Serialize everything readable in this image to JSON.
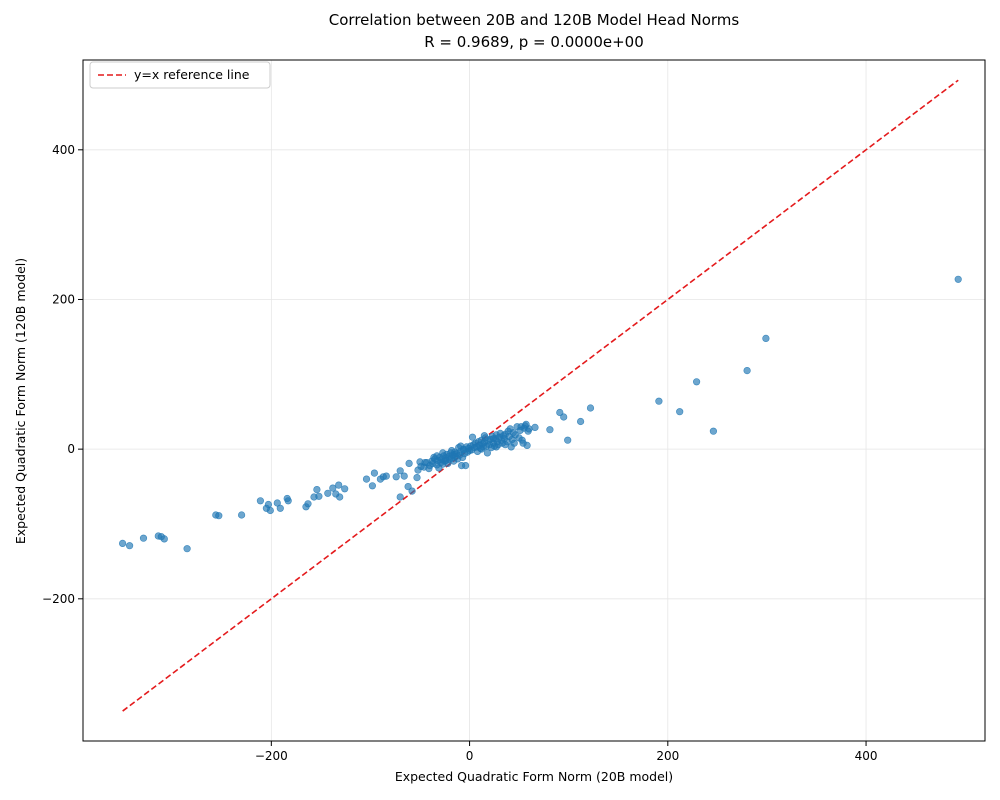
{
  "chart_data": {
    "type": "scatter",
    "title": "Correlation between 20B and 120B Model Head Norms",
    "subtitle": "R = 0.9689, p = 0.0000e+00",
    "xlabel": "Expected Quadratic Form Norm (20B model)",
    "ylabel": "Expected Quadratic Form Norm (120B model)",
    "xlim": [
      -390,
      520
    ],
    "ylim": [
      -390,
      520
    ],
    "xticks": [
      -200,
      0,
      200,
      400
    ],
    "yticks": [
      -200,
      0,
      200,
      400
    ],
    "xtick_labels": [
      "−200",
      "0",
      "200",
      "400"
    ],
    "ytick_labels": [
      "−200",
      "0",
      "200",
      "400"
    ],
    "grid": true,
    "legend_position": "upper-left",
    "series": [
      {
        "color": "#1f77b4",
        "points": [
          [
            493,
            227
          ],
          [
            299,
            148
          ],
          [
            280,
            105
          ],
          [
            229,
            90
          ],
          [
            191,
            64
          ],
          [
            212,
            50
          ],
          [
            246,
            24
          ],
          [
            122,
            55
          ],
          [
            112,
            37
          ],
          [
            99,
            12
          ],
          [
            91,
            49
          ],
          [
            95,
            43
          ],
          [
            81,
            26
          ],
          [
            -350,
            -126
          ],
          [
            -343,
            -129
          ],
          [
            -329,
            -119
          ],
          [
            -314,
            -116
          ],
          [
            -311,
            -117
          ],
          [
            -308,
            -120
          ],
          [
            -285,
            -133
          ],
          [
            -256,
            -88
          ],
          [
            -253,
            -89
          ],
          [
            -230,
            -88
          ],
          [
            -211,
            -69
          ],
          [
            -203,
            -74
          ],
          [
            -201,
            -82
          ],
          [
            -205,
            -79
          ],
          [
            -194,
            -72
          ],
          [
            -191,
            -79
          ],
          [
            -184,
            -66
          ],
          [
            -183,
            -69
          ],
          [
            -165,
            -77
          ],
          [
            -163,
            -73
          ],
          [
            -157,
            -64
          ],
          [
            -154,
            -54
          ],
          [
            -152,
            -63
          ],
          [
            -143,
            -59
          ],
          [
            -138,
            -52
          ],
          [
            -135,
            -60
          ],
          [
            -132,
            -48
          ],
          [
            -131,
            -64
          ],
          [
            -126,
            -53
          ],
          [
            -104,
            -40
          ],
          [
            -98,
            -49
          ],
          [
            -96,
            -32
          ],
          [
            -90,
            -40
          ],
          [
            -87,
            -37
          ],
          [
            -84,
            -36
          ],
          [
            -74,
            -37
          ],
          [
            -70,
            -64
          ],
          [
            -70,
            -29
          ],
          [
            -66,
            -36
          ],
          [
            -62,
            -50
          ],
          [
            -61,
            -19
          ],
          [
            -58,
            -56
          ],
          [
            -53,
            -38
          ],
          [
            -52,
            -28
          ],
          [
            -50,
            -17
          ],
          [
            -49,
            -23
          ],
          [
            -46,
            -24
          ],
          [
            -43,
            -18
          ],
          [
            -41,
            -26
          ],
          [
            -40,
            -22
          ],
          [
            -38,
            -16
          ],
          [
            -37,
            -19
          ],
          [
            -35,
            -13
          ],
          [
            -33,
            -21
          ],
          [
            -32,
            -15
          ],
          [
            -31,
            -25
          ],
          [
            -30,
            -11
          ],
          [
            -29,
            -18
          ],
          [
            -28,
            -14
          ],
          [
            -27,
            -20
          ],
          [
            -26,
            -9
          ],
          [
            -25,
            -16
          ],
          [
            -24,
            -12
          ],
          [
            -23,
            -7
          ],
          [
            -22,
            -19
          ],
          [
            -21,
            -10
          ],
          [
            -20,
            -14
          ],
          [
            -19,
            -5
          ],
          [
            -18,
            -12
          ],
          [
            -17,
            -8
          ],
          [
            -16,
            -16
          ],
          [
            -15,
            -4
          ],
          [
            -14,
            -10
          ],
          [
            -13,
            -6
          ],
          [
            -12,
            -13
          ],
          [
            -11,
            2
          ],
          [
            -10,
            -8
          ],
          [
            -9,
            -3
          ],
          [
            -8,
            -22
          ],
          [
            -7,
            -11
          ],
          [
            -6,
            -1
          ],
          [
            -5,
            -6
          ],
          [
            -4,
            -22
          ],
          [
            -3,
            3
          ],
          [
            -2,
            -4
          ],
          [
            -1,
            1
          ],
          [
            0,
            -2
          ],
          [
            1,
            4
          ],
          [
            2,
            -1
          ],
          [
            3,
            16
          ],
          [
            4,
            6
          ],
          [
            5,
            2
          ],
          [
            6,
            8
          ],
          [
            7,
            3
          ],
          [
            8,
            -3
          ],
          [
            9,
            10
          ],
          [
            10,
            5
          ],
          [
            11,
            1
          ],
          [
            12,
            12
          ],
          [
            13,
            7
          ],
          [
            14,
            3
          ],
          [
            15,
            9
          ],
          [
            16,
            15
          ],
          [
            17,
            4
          ],
          [
            18,
            -5
          ],
          [
            19,
            11
          ],
          [
            20,
            6
          ],
          [
            21,
            13
          ],
          [
            22,
            2
          ],
          [
            23,
            17
          ],
          [
            24,
            8
          ],
          [
            25,
            4
          ],
          [
            26,
            14
          ],
          [
            27,
            19
          ],
          [
            28,
            10
          ],
          [
            29,
            6
          ],
          [
            30,
            16
          ],
          [
            31,
            21
          ],
          [
            32,
            12
          ],
          [
            33,
            8
          ],
          [
            34,
            18
          ],
          [
            35,
            14
          ],
          [
            36,
            20
          ],
          [
            38,
            10
          ],
          [
            39,
            24
          ],
          [
            40,
            17
          ],
          [
            41,
            27
          ],
          [
            42,
            3
          ],
          [
            43,
            13
          ],
          [
            44,
            22
          ],
          [
            45,
            8
          ],
          [
            46,
            19
          ],
          [
            48,
            30
          ],
          [
            50,
            15
          ],
          [
            51,
            25
          ],
          [
            52,
            30
          ],
          [
            53,
            12
          ],
          [
            54,
            8
          ],
          [
            55,
            28
          ],
          [
            56,
            31
          ],
          [
            57,
            33
          ],
          [
            58,
            5
          ],
          [
            59,
            24
          ],
          [
            60,
            27
          ],
          [
            66,
            29
          ],
          [
            -45,
            -18
          ],
          [
            -36,
            -11
          ],
          [
            -27,
            -5
          ],
          [
            -18,
            -2
          ],
          [
            -9,
            4
          ],
          [
            12,
            0
          ],
          [
            24,
            14
          ],
          [
            -33,
            -9
          ],
          [
            -24,
            -15
          ],
          [
            -15,
            -7
          ],
          [
            -6,
            0
          ],
          [
            15,
            18
          ],
          [
            27,
            3
          ],
          [
            36,
            6
          ]
        ]
      },
      {
        "name": "y=x reference line",
        "color": "#e41a1c",
        "line": [
          [
            -350,
            -350
          ],
          [
            493,
            493
          ]
        ]
      }
    ]
  }
}
